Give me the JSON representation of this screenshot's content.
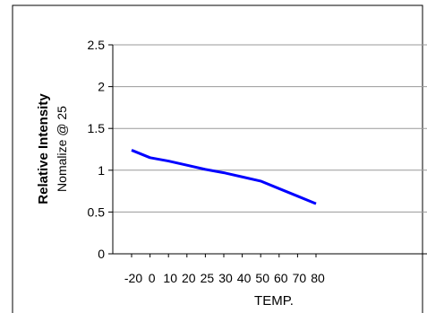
{
  "chart_data": {
    "type": "line",
    "title": "",
    "xlabel": "TEMP.",
    "ylabel": "Relative Intensity",
    "ylabel_sub": "Nomalize @ 25",
    "categories": [
      "-20",
      "0",
      "10",
      "20",
      "25",
      "30",
      "40",
      "50",
      "60",
      "70",
      "80"
    ],
    "ylim": [
      0,
      2.5
    ],
    "yticks": [
      "0",
      "0.5",
      "1",
      "1.5",
      "2",
      "2.5"
    ],
    "grid": true,
    "legend": "none",
    "series": [
      {
        "color": "#0000ff",
        "values": [
          1.24,
          1.15,
          1.11,
          1.06,
          1.01,
          0.97,
          0.92,
          0.87,
          0.78,
          0.69,
          0.6
        ]
      }
    ]
  },
  "colors": {
    "line": "#0000ff",
    "grid": "#999999",
    "axis": "#000000",
    "frame": "#000000"
  }
}
